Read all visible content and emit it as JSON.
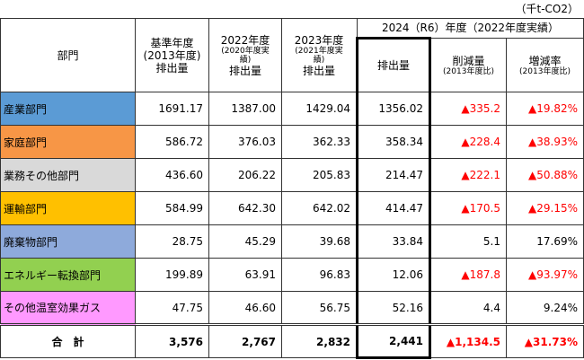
{
  "unit": "（千t-CO2）",
  "header": {
    "sector": "部門",
    "base": [
      "基準年度",
      "(2013年度)",
      "排出量"
    ],
    "y2022": [
      "2022年度",
      "(2020年度実",
      "績)",
      "排出量"
    ],
    "y2023": [
      "2023年度",
      "(2021年度実",
      "績)",
      "排出量"
    ],
    "group": "2024（R6）年度（2022年度実績）",
    "y2024": "排出量",
    "reduction": [
      "削減量",
      "(2013年度比)"
    ],
    "rate": [
      "増減率",
      "(2013年度比)"
    ]
  },
  "rows": [
    {
      "name": "産業部門",
      "color": "#5b9bd5",
      "change_color": "#ff0000",
      "base": "1691.17",
      "y2022": "1387.00",
      "y2023": "1429.04",
      "y2024": "1356.02",
      "reduction": "▲335.2",
      "rate": "▲19.82%"
    },
    {
      "name": "家庭部門",
      "color": "#f79646",
      "change_color": "#ff0000",
      "base": "586.72",
      "y2022": "376.03",
      "y2023": "362.33",
      "y2024": "358.34",
      "reduction": "▲228.4",
      "rate": "▲38.93%"
    },
    {
      "name": "業務その他部門",
      "color": "#d9d9d9",
      "change_color": "#ff0000",
      "base": "436.60",
      "y2022": "206.22",
      "y2023": "205.83",
      "y2024": "214.47",
      "reduction": "▲222.1",
      "rate": "▲50.88%"
    },
    {
      "name": "運輸部門",
      "color": "#ffc000",
      "change_color": "#ff0000",
      "base": "584.99",
      "y2022": "642.30",
      "y2023": "642.02",
      "y2024": "414.47",
      "reduction": "▲170.5",
      "rate": "▲29.15%"
    },
    {
      "name": "廃棄物部門",
      "color": "#8eaadb",
      "change_color": "#000000",
      "base": "28.75",
      "y2022": "45.29",
      "y2023": "39.68",
      "y2024": "33.84",
      "reduction": "5.1",
      "rate": "17.69%"
    },
    {
      "name": "エネルギー転換部門",
      "color": "#92d050",
      "change_color": "#ff0000",
      "base": "199.89",
      "y2022": "63.91",
      "y2023": "96.83",
      "y2024": "12.06",
      "reduction": "▲187.8",
      "rate": "▲93.97%"
    },
    {
      "name": "その他温室効果ガス",
      "color": "#ff99ff",
      "change_color": "#000000",
      "base": "47.75",
      "y2022": "46.60",
      "y2023": "56.75",
      "y2024": "52.16",
      "reduction": "4.4",
      "rate": "9.24%"
    }
  ],
  "total": {
    "name": "合　計",
    "change_color": "#ff0000",
    "base": "3,576",
    "y2022": "2,767",
    "y2023": "2,832",
    "y2024": "2,441",
    "reduction": "▲1,134.5",
    "rate": "▲31.73%"
  }
}
